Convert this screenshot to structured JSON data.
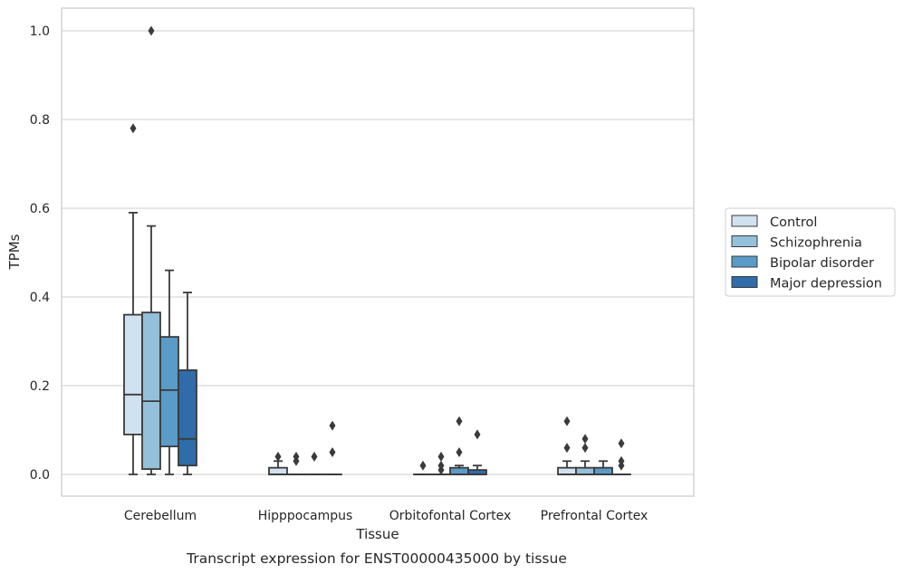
{
  "chart_data": {
    "type": "box",
    "xlabel": "Tissue",
    "ylabel": "TPMs",
    "caption": "Transcript expression for ENST00000435000 by tissue",
    "ylim": [
      -0.05,
      1.05
    ],
    "yticks": [
      0.0,
      0.2,
      0.4,
      0.6,
      0.8,
      1.0
    ],
    "ytick_labels": [
      "0.0",
      "0.2",
      "0.4",
      "0.6",
      "0.8",
      "1.0"
    ],
    "grid": "horizontal",
    "legend_position": "right",
    "categories": [
      "Cerebellum",
      "Hipppocampus",
      "Orbitofontal Cortex",
      "Prefrontal Cortex"
    ],
    "series": [
      {
        "name": "Control",
        "color": "#d0e1f0",
        "boxes": [
          {
            "whislo": 0.0,
            "q1": 0.09,
            "med": 0.18,
            "q3": 0.36,
            "whishi": 0.59,
            "fliers": [
              0.78
            ]
          },
          {
            "whislo": 0.0,
            "q1": 0.0,
            "med": 0.0,
            "q3": 0.015,
            "whishi": 0.03,
            "fliers": [
              0.04
            ]
          },
          {
            "whislo": 0.0,
            "q1": 0.0,
            "med": 0.0,
            "q3": 0.0,
            "whishi": 0.0,
            "fliers": [
              0.02
            ]
          },
          {
            "whislo": 0.0,
            "q1": 0.0,
            "med": 0.0,
            "q3": 0.015,
            "whishi": 0.03,
            "fliers": [
              0.06,
              0.12
            ]
          }
        ]
      },
      {
        "name": "Schizophrenia",
        "color": "#94c0db",
        "boxes": [
          {
            "whislo": 0.0,
            "q1": 0.012,
            "med": 0.165,
            "q3": 0.365,
            "whishi": 0.56,
            "fliers": [
              1.0
            ]
          },
          {
            "whislo": 0.0,
            "q1": 0.0,
            "med": 0.0,
            "q3": 0.0,
            "whishi": 0.0,
            "fliers": [
              0.03,
              0.04
            ]
          },
          {
            "whislo": 0.0,
            "q1": 0.0,
            "med": 0.0,
            "q3": 0.0,
            "whishi": 0.0,
            "fliers": [
              0.01,
              0.02,
              0.04
            ]
          },
          {
            "whislo": 0.0,
            "q1": 0.0,
            "med": 0.0,
            "q3": 0.015,
            "whishi": 0.03,
            "fliers": [
              0.06,
              0.08
            ]
          }
        ]
      },
      {
        "name": "Bipolar disorder",
        "color": "#5a9bc8",
        "boxes": [
          {
            "whislo": 0.0,
            "q1": 0.063,
            "med": 0.19,
            "q3": 0.31,
            "whishi": 0.46,
            "fliers": []
          },
          {
            "whislo": 0.0,
            "q1": 0.0,
            "med": 0.0,
            "q3": 0.0,
            "whishi": 0.0,
            "fliers": [
              0.04
            ]
          },
          {
            "whislo": 0.0,
            "q1": 0.0,
            "med": 0.0,
            "q3": 0.015,
            "whishi": 0.02,
            "fliers": [
              0.05,
              0.12
            ]
          },
          {
            "whislo": 0.0,
            "q1": 0.0,
            "med": 0.0,
            "q3": 0.015,
            "whishi": 0.03,
            "fliers": []
          }
        ]
      },
      {
        "name": "Major depression",
        "color": "#2f6ca9",
        "boxes": [
          {
            "whislo": 0.0,
            "q1": 0.02,
            "med": 0.08,
            "q3": 0.235,
            "whishi": 0.41,
            "fliers": []
          },
          {
            "whislo": 0.0,
            "q1": 0.0,
            "med": 0.0,
            "q3": 0.0,
            "whishi": 0.0,
            "fliers": [
              0.05,
              0.11
            ]
          },
          {
            "whislo": 0.0,
            "q1": 0.0,
            "med": 0.0,
            "q3": 0.01,
            "whishi": 0.02,
            "fliers": [
              0.09
            ]
          },
          {
            "whislo": 0.0,
            "q1": 0.0,
            "med": 0.0,
            "q3": 0.0,
            "whishi": 0.0,
            "fliers": [
              0.02,
              0.03,
              0.07
            ]
          }
        ]
      }
    ]
  }
}
